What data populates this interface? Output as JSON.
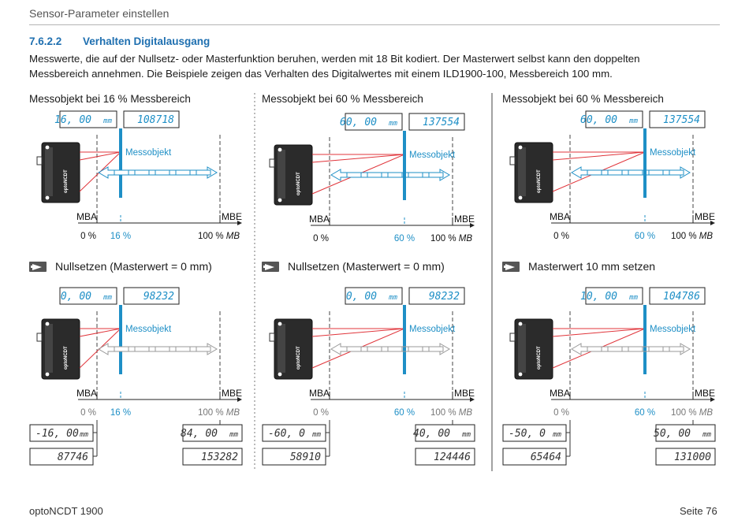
{
  "header": {
    "title": "Sensor-Parameter einstellen"
  },
  "section": {
    "number": "7.6.2.2",
    "title": "Verhalten Digitalausgang"
  },
  "intro": [
    "Messwerte, die auf der Nullsetz- oder Masterfunktion beruhen, werden mit 18 Bit kodiert. Der Masterwert selbst kann den doppelten",
    "Messbereich annehmen. Die Beispiele zeigen das Verhalten des Digitalwertes mit einem ILD1900-100, Messbereich 100 mm."
  ],
  "labels": {
    "object": "Messobjekt",
    "mba": "MBA",
    "mbe": "MBE",
    "axis_start": "0 %",
    "axis_end_value": "100 %",
    "axis_end_unit": "MB",
    "unit": "mm",
    "brand": "optoNCDT"
  },
  "columns": [
    {
      "title": "Messobjekt bei 16 % Messbereich",
      "object_percent": "16 %",
      "display_top": {
        "mm": "16.00",
        "digital": "108718"
      },
      "action": "Nullsetzen (Masterwert = 0 mm)",
      "display_bottom": {
        "mm": "0.00",
        "digital": "98232"
      },
      "mba_value": {
        "mm": "-16.00",
        "digital": "87746"
      },
      "mbe_value": {
        "mm": "84.00",
        "digital": "153282"
      }
    },
    {
      "title": "Messobjekt bei 60 % Messbereich",
      "object_percent": "60 %",
      "display_top": {
        "mm": "60.00",
        "digital": "137554"
      },
      "action": "Nullsetzen (Masterwert = 0 mm)",
      "display_bottom": {
        "mm": "0.00",
        "digital": "98232"
      },
      "mba_value": {
        "mm": "-60.0",
        "digital": "58910"
      },
      "mbe_value": {
        "mm": "40.00",
        "digital": "124446"
      }
    },
    {
      "title": "Messobjekt bei 60 % Messbereich",
      "object_percent": "60 %",
      "display_top": {
        "mm": "60.00",
        "digital": "137554"
      },
      "action": "Masterwert 10 mm setzen",
      "display_bottom": {
        "mm": "10.00",
        "digital": "104786"
      },
      "mba_value": {
        "mm": "-50.0",
        "digital": "65464"
      },
      "mbe_value": {
        "mm": "50.00",
        "digital": "131000"
      }
    }
  ],
  "colors": {
    "accent": "#1e8fc6",
    "heading": "#1e6fb0",
    "laser": "#e0353b"
  },
  "footer": {
    "left": "optoNCDT 1900",
    "right": "Seite 76"
  }
}
